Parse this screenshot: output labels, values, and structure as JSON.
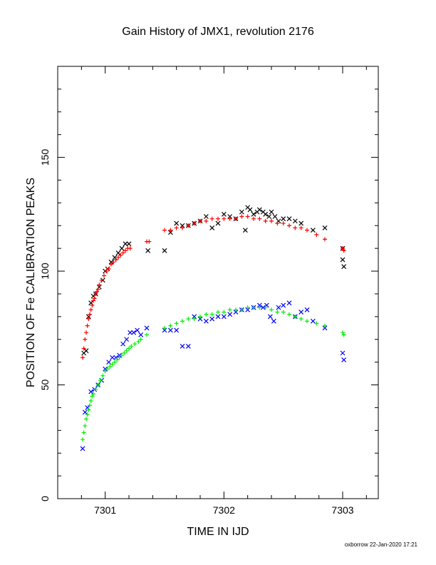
{
  "title": "Gain History of JMX1, revolution 2176",
  "footer": "oxborrow 22-Jan-2020 17:21",
  "chart_data": {
    "type": "scatter",
    "title": "Gain History of JMX1, revolution 2176",
    "xlabel": "TIME IN IJD",
    "ylabel": "POSITION OF Fe CALIBRATION PEAKS",
    "xlim": [
      7300.6,
      7303.3
    ],
    "ylim": [
      0,
      190
    ],
    "xticks": [
      7301,
      7302,
      7303
    ],
    "yticks": [
      0,
      50,
      100,
      150
    ],
    "grid": false,
    "colors": {
      "black": "#000000",
      "red": "#ff0000",
      "blue": "#0000ff",
      "green": "#00ee00"
    },
    "series": [
      {
        "marker": "x",
        "color": "#000000",
        "x": [
          7300.82,
          7300.84,
          7300.86,
          7300.88,
          7300.9,
          7300.92,
          7300.95,
          7300.98,
          7301.0,
          7301.02,
          7301.05,
          7301.08,
          7301.11,
          7301.14,
          7301.17,
          7301.2,
          7301.36,
          7301.5,
          7301.55,
          7301.6,
          7301.65,
          7301.7,
          7301.75,
          7301.8,
          7301.85,
          7301.9,
          7301.95,
          7302.0,
          7302.05,
          7302.1,
          7302.15,
          7302.18,
          7302.2,
          7302.22,
          7302.25,
          7302.28,
          7302.3,
          7302.33,
          7302.35,
          7302.38,
          7302.4,
          7302.43,
          7302.46,
          7302.5,
          7302.55,
          7302.6,
          7302.65,
          7302.75,
          7302.85,
          7303.0,
          7303.0,
          7303.01
        ],
        "y": [
          64,
          65,
          80,
          86,
          89,
          90,
          93,
          96,
          100,
          101,
          104,
          106,
          108,
          110,
          112,
          112,
          109,
          109,
          117,
          121,
          120,
          120,
          121,
          122,
          124,
          119,
          121,
          125,
          124,
          123,
          126,
          118,
          128,
          127,
          125,
          126,
          127,
          126,
          125,
          124,
          126,
          124,
          122,
          123,
          123,
          122,
          121,
          118,
          119,
          110,
          105,
          102
        ]
      },
      {
        "marker": "+",
        "color": "#ff0000",
        "x": [
          7300.81,
          7300.82,
          7300.83,
          7300.84,
          7300.85,
          7300.86,
          7300.87,
          7300.88,
          7300.89,
          7300.9,
          7300.91,
          7300.92,
          7300.93,
          7300.94,
          7300.95,
          7300.97,
          7300.99,
          7301.01,
          7301.03,
          7301.05,
          7301.07,
          7301.09,
          7301.11,
          7301.13,
          7301.15,
          7301.17,
          7301.19,
          7301.21,
          7301.35,
          7301.37,
          7301.5,
          7301.55,
          7301.6,
          7301.65,
          7301.7,
          7301.75,
          7301.8,
          7301.85,
          7301.9,
          7301.95,
          7302.0,
          7302.05,
          7302.1,
          7302.15,
          7302.2,
          7302.25,
          7302.3,
          7302.35,
          7302.4,
          7302.45,
          7302.5,
          7302.55,
          7302.6,
          7302.65,
          7302.7,
          7302.78,
          7302.85,
          7303.0,
          7303.01
        ],
        "y": [
          62,
          66,
          70,
          73,
          76,
          79,
          81,
          83,
          85,
          87,
          88,
          90,
          91,
          92,
          94,
          96,
          98,
          100,
          101,
          103,
          104,
          105,
          106,
          107,
          108,
          109,
          110,
          110,
          113,
          113,
          118,
          118,
          119,
          119,
          120,
          121,
          122,
          122,
          123,
          123,
          123,
          123,
          123,
          124,
          124,
          123,
          123,
          122,
          122,
          121,
          121,
          120,
          119,
          119,
          118,
          116,
          114,
          110,
          109
        ]
      },
      {
        "marker": "x",
        "color": "#0000ff",
        "x": [
          7300.81,
          7300.83,
          7300.85,
          7300.88,
          7300.91,
          7300.94,
          7300.97,
          7301.0,
          7301.03,
          7301.06,
          7301.09,
          7301.12,
          7301.15,
          7301.18,
          7301.21,
          7301.24,
          7301.27,
          7301.3,
          7301.35,
          7301.5,
          7301.55,
          7301.6,
          7301.65,
          7301.7,
          7301.75,
          7301.8,
          7301.85,
          7301.9,
          7301.95,
          7302.0,
          7302.05,
          7302.1,
          7302.15,
          7302.2,
          7302.25,
          7302.3,
          7302.33,
          7302.36,
          7302.39,
          7302.42,
          7302.46,
          7302.5,
          7302.55,
          7302.6,
          7302.65,
          7302.7,
          7302.75,
          7302.85,
          7303.0,
          7303.01
        ],
        "y": [
          22,
          38,
          40,
          47,
          48,
          50,
          52,
          57,
          60,
          62,
          62,
          63,
          68,
          70,
          73,
          73,
          74,
          72,
          75,
          74,
          74,
          74,
          67,
          67,
          80,
          79,
          78,
          79,
          80,
          80,
          81,
          82,
          83,
          83,
          84,
          85,
          84,
          85,
          80,
          78,
          84,
          85,
          86,
          80,
          82,
          83,
          78,
          75,
          64,
          61
        ]
      },
      {
        "marker": "+",
        "color": "#00ee00",
        "x": [
          7300.81,
          7300.82,
          7300.83,
          7300.84,
          7300.85,
          7300.86,
          7300.87,
          7300.88,
          7300.89,
          7300.9,
          7300.92,
          7300.94,
          7300.96,
          7300.98,
          7301.0,
          7301.02,
          7301.04,
          7301.06,
          7301.08,
          7301.1,
          7301.12,
          7301.14,
          7301.16,
          7301.18,
          7301.2,
          7301.22,
          7301.25,
          7301.28,
          7301.3,
          7301.35,
          7301.5,
          7301.55,
          7301.6,
          7301.65,
          7301.7,
          7301.75,
          7301.8,
          7301.85,
          7301.9,
          7301.95,
          7302.0,
          7302.05,
          7302.1,
          7302.15,
          7302.2,
          7302.25,
          7302.3,
          7302.35,
          7302.4,
          7302.45,
          7302.5,
          7302.55,
          7302.6,
          7302.65,
          7302.7,
          7302.78,
          7302.85,
          7303.0,
          7303.01
        ],
        "y": [
          26,
          29,
          32,
          35,
          37,
          39,
          41,
          43,
          45,
          46,
          48,
          50,
          52,
          54,
          56,
          57,
          58,
          59,
          60,
          61,
          62,
          63,
          64,
          65,
          66,
          67,
          68,
          69,
          70,
          72,
          75,
          76,
          77,
          78,
          79,
          79,
          80,
          81,
          81,
          82,
          82,
          83,
          83,
          83,
          84,
          84,
          84,
          84,
          83,
          82,
          82,
          81,
          80,
          79,
          78,
          77,
          76,
          73,
          72
        ]
      }
    ]
  }
}
